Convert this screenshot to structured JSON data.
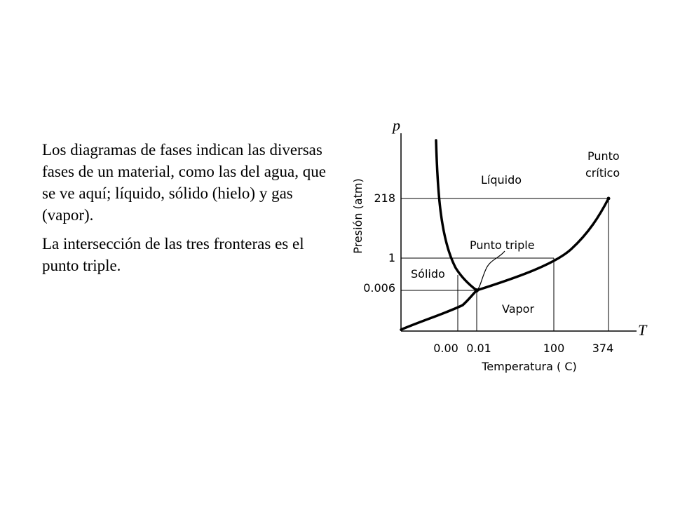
{
  "text": {
    "paragraph1": "Los diagramas de fases indican las diversas fases de un material, como las del agua, que se ve aquí; líquido, sólido (hielo) y gas (vapor).",
    "paragraph2": "La intersección de las tres fronteras es el punto triple."
  },
  "diagram": {
    "axis_y_symbol": "p",
    "axis_x_symbol": "T",
    "axis_y_label": "Presión (atm)",
    "axis_x_label": "Temperatura ( C)",
    "y_ticks": [
      "218",
      "1",
      "0.006"
    ],
    "x_ticks": [
      "0.00",
      "0.01",
      "100",
      "374"
    ],
    "regions": {
      "liquid": "Líquido",
      "solid": "Sólido",
      "vapor": "Vapor"
    },
    "annotations": {
      "critical_point_line1": "Punto",
      "critical_point_line2": "crítico",
      "triple_point": "Punto triple"
    }
  }
}
